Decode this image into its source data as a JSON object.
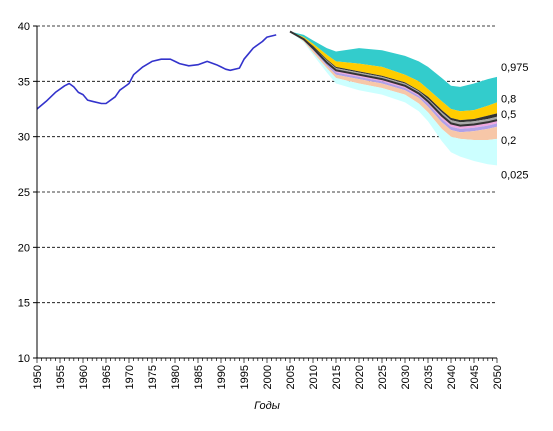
{
  "chart_data": {
    "type": "area",
    "xlabel": "Годы",
    "ylabel": "",
    "xlim": [
      1950,
      2050
    ],
    "ylim": [
      10,
      40
    ],
    "x_ticks": [
      1950,
      1955,
      1960,
      1965,
      1970,
      1975,
      1980,
      1985,
      1990,
      1995,
      2000,
      2005,
      2010,
      2015,
      2020,
      2025,
      2030,
      2035,
      2040,
      2045,
      2050
    ],
    "y_ticks": [
      10,
      15,
      20,
      25,
      30,
      35,
      40
    ],
    "grid": "horizontal-dashed",
    "historical": {
      "color": "#3333cc",
      "x": [
        1950,
        1952,
        1954,
        1956,
        1957,
        1958,
        1959,
        1960,
        1961,
        1962,
        1964,
        1965,
        1967,
        1968,
        1969,
        1970,
        1971,
        1973,
        1975,
        1977,
        1979,
        1980,
        1981,
        1983,
        1985,
        1987,
        1989,
        1990,
        1991,
        1992,
        1994,
        1995,
        1996,
        1997,
        1999,
        2000,
        2002
      ],
      "y": [
        32.5,
        33.2,
        34.0,
        34.6,
        34.8,
        34.5,
        34.0,
        33.8,
        33.3,
        33.2,
        33.0,
        33.0,
        33.6,
        34.2,
        34.5,
        34.8,
        35.6,
        36.3,
        36.8,
        37.0,
        37.0,
        36.8,
        36.6,
        36.4,
        36.5,
        36.8,
        36.5,
        36.3,
        36.1,
        36.0,
        36.2,
        37.0,
        37.5,
        38.0,
        38.6,
        39.0,
        39.2
      ]
    },
    "forecast": {
      "x": [
        2005,
        2008,
        2010,
        2013,
        2015,
        2020,
        2025,
        2030,
        2033,
        2035,
        2038,
        2040,
        2042,
        2045,
        2048,
        2050
      ],
      "quantiles": [
        {
          "label": "0,975",
          "y": [
            39.5,
            39.2,
            38.7,
            38.0,
            37.7,
            38.0,
            37.8,
            37.3,
            36.8,
            36.3,
            35.3,
            34.6,
            34.5,
            34.8,
            35.2,
            35.4
          ]
        },
        {
          "label": "0,8",
          "y": [
            39.5,
            39.0,
            38.4,
            37.4,
            36.8,
            36.6,
            36.3,
            35.6,
            35.0,
            34.3,
            33.2,
            32.5,
            32.3,
            32.4,
            32.8,
            33.1
          ]
        },
        {
          "label": "",
          "y": [
            39.5,
            38.9,
            38.2,
            37.0,
            36.3,
            35.9,
            35.5,
            34.9,
            34.2,
            33.6,
            32.4,
            31.7,
            31.5,
            31.6,
            31.9,
            32.1
          ]
        },
        {
          "label": "",
          "y": [
            39.5,
            38.9,
            38.1,
            36.9,
            36.2,
            35.8,
            35.4,
            34.8,
            34.1,
            33.4,
            32.2,
            31.5,
            31.3,
            31.4,
            31.6,
            31.8
          ]
        },
        {
          "label": "0,5",
          "y": [
            39.5,
            38.8,
            38.0,
            36.7,
            36.0,
            35.6,
            35.2,
            34.6,
            33.9,
            33.2,
            31.9,
            31.2,
            31.0,
            31.1,
            31.3,
            31.5
          ]
        },
        {
          "label": "",
          "y": [
            39.5,
            38.7,
            37.9,
            36.6,
            35.8,
            35.4,
            35.0,
            34.4,
            33.7,
            33.0,
            31.6,
            30.9,
            30.7,
            30.8,
            31.0,
            31.2
          ]
        },
        {
          "label": "",
          "y": [
            39.5,
            38.7,
            37.8,
            36.4,
            35.6,
            35.2,
            34.8,
            34.2,
            33.5,
            32.7,
            31.3,
            30.6,
            30.4,
            30.5,
            30.7,
            30.9
          ]
        },
        {
          "label": "0,2",
          "y": [
            39.5,
            38.6,
            37.6,
            36.2,
            35.3,
            34.8,
            34.4,
            33.8,
            33.0,
            32.2,
            30.7,
            30.0,
            29.8,
            29.7,
            29.7,
            29.8
          ]
        },
        {
          "label": "0,025",
          "y": [
            39.5,
            38.5,
            37.4,
            35.8,
            34.8,
            34.2,
            33.8,
            33.1,
            32.3,
            31.4,
            29.6,
            28.6,
            28.2,
            27.8,
            27.5,
            27.4
          ]
        }
      ],
      "band_colors": [
        "#33cccc",
        "#ffcc00",
        "#333333",
        "#a9a9a9",
        "#f0a8e0",
        "#b0a0e8",
        "#f7c7a8",
        "#ccffff"
      ],
      "median_color": "#333333"
    }
  }
}
